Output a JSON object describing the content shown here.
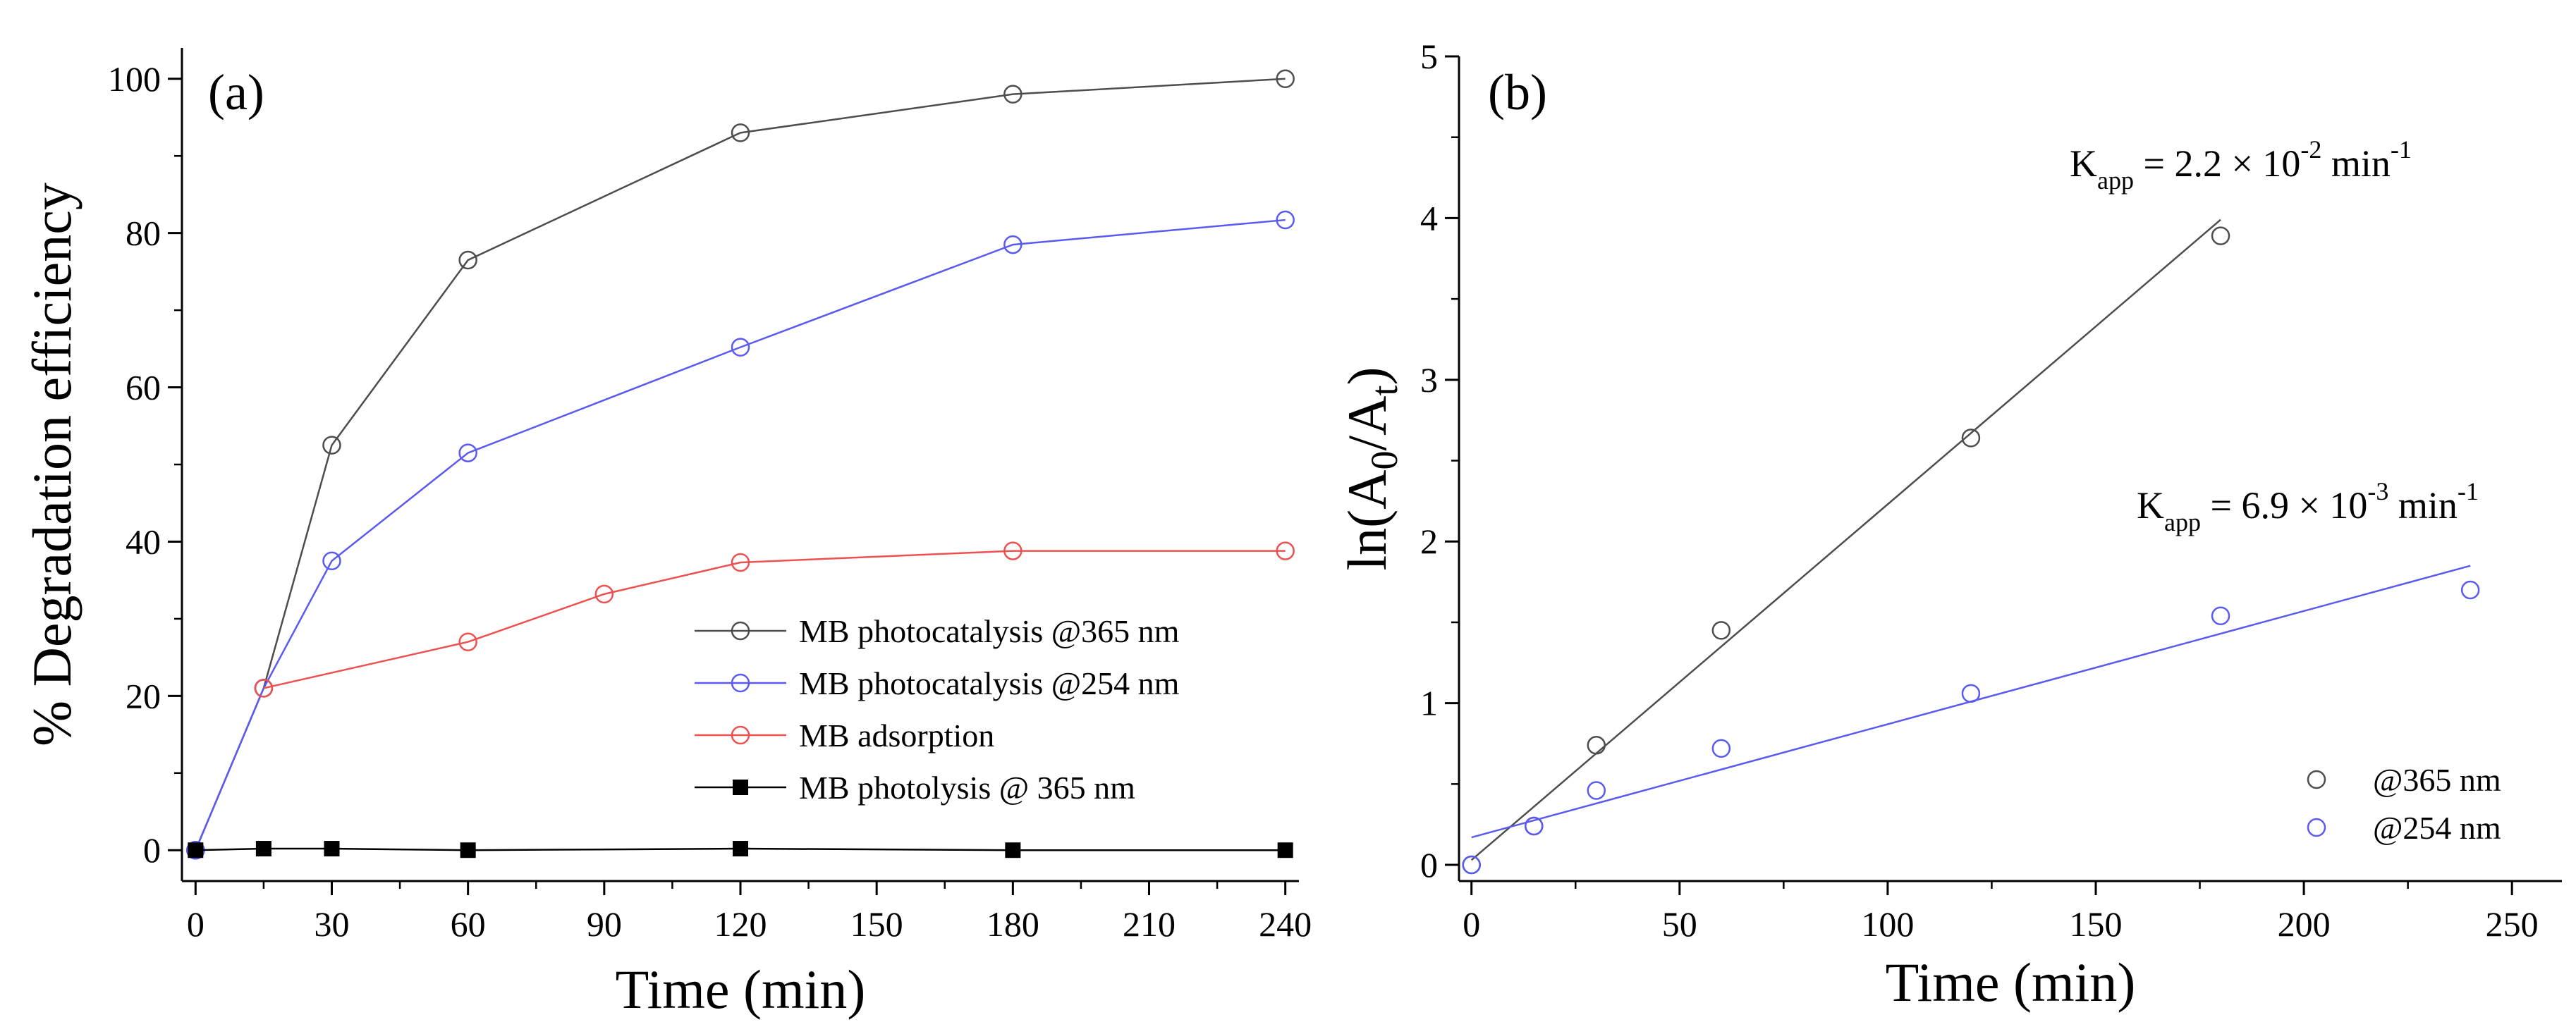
{
  "chart_data": [
    {
      "type": "line",
      "panel_label": "(a)",
      "xlabel": "Time (min)",
      "ylabel": "% Degradation efficiency",
      "xlim": [
        -3,
        243
      ],
      "ylim": [
        -4,
        104
      ],
      "xticks": [
        0,
        30,
        60,
        90,
        120,
        150,
        180,
        210,
        240
      ],
      "yticks": [
        0,
        20,
        40,
        60,
        80,
        100
      ],
      "legend_position": "lower-right",
      "series": [
        {
          "name": "MB photocatalysis @365 nm",
          "color": "#4d4d4d",
          "marker": "open-circle",
          "x": [
            0,
            15,
            30,
            60,
            120,
            180,
            240
          ],
          "y": [
            0,
            21,
            52.5,
            76.5,
            93,
            98,
            100
          ]
        },
        {
          "name": "MB photocatalysis @254 nm",
          "color": "#5a5af0",
          "marker": "open-circle",
          "x": [
            0,
            15,
            30,
            60,
            120,
            180,
            240
          ],
          "y": [
            0,
            21,
            37.5,
            51.5,
            65.2,
            78.5,
            81.7
          ]
        },
        {
          "name": "MB adsorption",
          "color": "#ee5050",
          "marker": "open-circle",
          "x": [
            15,
            60,
            90,
            120,
            180,
            240
          ],
          "y": [
            21,
            27,
            33.2,
            37.3,
            38.8,
            38.8
          ]
        },
        {
          "name": "MB photolysis @ 365 nm",
          "color": "#000000",
          "marker": "filled-square",
          "x": [
            0,
            15,
            30,
            60,
            120,
            180,
            240
          ],
          "y": [
            0,
            0.2,
            0.2,
            0,
            0.2,
            0,
            0
          ]
        }
      ]
    },
    {
      "type": "scatter",
      "panel_label": "(b)",
      "xlabel": "Time (min)",
      "ylabel": "ln(A0/At)",
      "xlim": [
        -3,
        262
      ],
      "ylim": [
        -0.1,
        5
      ],
      "xticks": [
        0,
        50,
        100,
        150,
        200,
        250
      ],
      "yticks": [
        0,
        1,
        2,
        3,
        4,
        5
      ],
      "legend_position": "lower-right",
      "annotations": [
        {
          "text": "Kapp = 2.2 × 10-2 min-1",
          "K": "K",
          "sub": "app",
          "base": " = 2.2 × 10",
          "exp": "-2",
          "unit": " min",
          "unit_exp": "-1"
        },
        {
          "text": "Kapp = 6.9 × 10-3 min-1",
          "K": "K",
          "sub": "app",
          "base": " = 6.9 × 10",
          "exp": "-3",
          "unit": " min",
          "unit_exp": "-1"
        }
      ],
      "series": [
        {
          "name": "@365 nm",
          "color": "#4d4d4d",
          "marker": "open-circle",
          "x": [
            0,
            15,
            30,
            60,
            120,
            180
          ],
          "y": [
            0,
            0.24,
            0.74,
            1.45,
            2.64,
            3.89
          ],
          "fit": {
            "x": [
              0,
              180
            ],
            "y": [
              0.03,
              3.99
            ]
          }
        },
        {
          "name": "@254 nm",
          "color": "#5a5af0",
          "marker": "open-circle",
          "x": [
            0,
            15,
            30,
            60,
            120,
            180,
            240
          ],
          "y": [
            0,
            0.24,
            0.46,
            0.72,
            1.06,
            1.54,
            1.7
          ],
          "fit": {
            "x": [
              0,
              240
            ],
            "y": [
              0.17,
              1.85
            ]
          }
        }
      ]
    }
  ]
}
